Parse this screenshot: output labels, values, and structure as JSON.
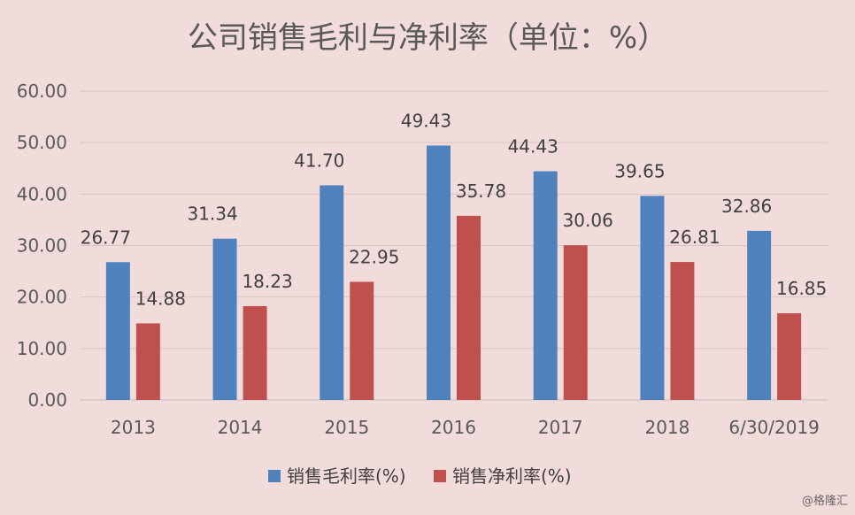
{
  "chart_data": {
    "type": "bar",
    "title": "公司销售毛利与净利率（单位：%）",
    "categories": [
      "2013",
      "2014",
      "2015",
      "2016",
      "2017",
      "2018",
      "6/30/2019"
    ],
    "series": [
      {
        "name": "销售毛利率(%)",
        "color": "#4f81bd",
        "values": [
          26.77,
          31.34,
          41.7,
          49.43,
          44.43,
          39.65,
          32.86
        ]
      },
      {
        "name": "销售净利率(%)",
        "color": "#c0504d",
        "values": [
          14.88,
          18.23,
          22.95,
          35.78,
          30.06,
          26.81,
          16.85
        ]
      }
    ],
    "ylim": [
      0,
      60
    ],
    "yticks": [
      "0.00",
      "10.00",
      "20.00",
      "30.00",
      "40.00",
      "50.00",
      "60.00"
    ],
    "data_labels": [
      [
        "26.77",
        "31.34",
        "41.70",
        "49.43",
        "44.43",
        "39.65",
        "32.86"
      ],
      [
        "14.88",
        "18.23",
        "22.95",
        "35.78",
        "30.06",
        "26.81",
        "16.85"
      ]
    ],
    "grid": true,
    "legend": "bottom",
    "xlabel": "",
    "ylabel": ""
  },
  "watermark": "@格隆汇"
}
